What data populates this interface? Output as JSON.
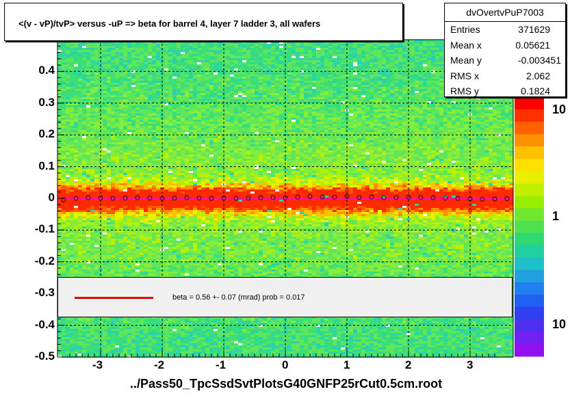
{
  "title": "<(v - vP)/tvP>  versus  -uP => beta for barrel 4, layer 7 ladder 3, all wafers",
  "xlabel": "../Pass50_TpcSsdSvtPlotsG40GNFP25rCut0.5cm.root",
  "stats": {
    "name": "dvOvertvPuP7003",
    "rows": [
      {
        "key": "Entries",
        "value": "371629"
      },
      {
        "key": "Mean x",
        "value": "0.05621"
      },
      {
        "key": "Mean y",
        "value": "-0.003451"
      },
      {
        "key": "RMS x",
        "value": "2.062"
      },
      {
        "key": "RMS y",
        "value": "0.1824"
      }
    ]
  },
  "fit_legend": {
    "text": "beta =    0.56 +-  0.07 (mrad) prob = 0.017",
    "line_color": "#e00000"
  },
  "z_ticks": [
    "10",
    "1",
    "10"
  ],
  "chart_data": {
    "type": "heatmap",
    "title": "<(v - vP)/tvP>  versus  -uP => beta for barrel 4, layer 7 ladder 3, all wafers",
    "xlabel": "../Pass50_TpcSsdSvtPlotsG40GNFP25rCut0.5cm.root",
    "ylabel": "",
    "xlim": [
      -3.7,
      3.7
    ],
    "ylim": [
      -0.5,
      0.5
    ],
    "x_ticks": [
      "-3",
      "-2",
      "-1",
      "0",
      "1",
      "2",
      "3"
    ],
    "y_ticks": [
      "-0.5",
      "-0.4",
      "-0.3",
      "-0.2",
      "-0.1",
      "0",
      "0.1",
      "0.2",
      "0.3",
      "0.4"
    ],
    "grid": true,
    "z_scale": "log",
    "profile_y": 0.0,
    "profile_points": [
      [
        -3.6,
        -0.005
      ],
      [
        -3.4,
        0.0
      ],
      [
        -3.2,
        0.002
      ],
      [
        -3.0,
        0.001
      ],
      [
        -2.8,
        0.0
      ],
      [
        -2.6,
        0.001
      ],
      [
        -2.4,
        0.002
      ],
      [
        -2.2,
        0.001
      ],
      [
        -2.0,
        0.0
      ],
      [
        -1.8,
        0.001
      ],
      [
        -1.6,
        0.002
      ],
      [
        -1.4,
        0.001
      ],
      [
        -1.2,
        0.0
      ],
      [
        -1.0,
        0.001
      ],
      [
        -0.8,
        0.0
      ],
      [
        -0.6,
        0.001
      ],
      [
        -0.4,
        0.002
      ],
      [
        -0.2,
        0.003
      ],
      [
        0.0,
        0.002
      ],
      [
        0.2,
        0.004
      ],
      [
        0.4,
        0.006
      ],
      [
        0.6,
        0.005
      ],
      [
        0.8,
        0.004
      ],
      [
        1.0,
        0.006
      ],
      [
        1.2,
        0.003
      ],
      [
        1.4,
        0.004
      ],
      [
        1.6,
        0.002
      ],
      [
        1.8,
        0.003
      ],
      [
        2.0,
        0.004
      ],
      [
        2.2,
        0.003
      ],
      [
        2.4,
        0.002
      ],
      [
        2.6,
        0.001
      ],
      [
        2.8,
        0.0
      ],
      [
        3.0,
        -0.002
      ],
      [
        3.2,
        -0.003
      ],
      [
        3.4,
        -0.002
      ],
      [
        3.6,
        -0.001
      ]
    ],
    "fit_line_color": "#ff00ff"
  }
}
